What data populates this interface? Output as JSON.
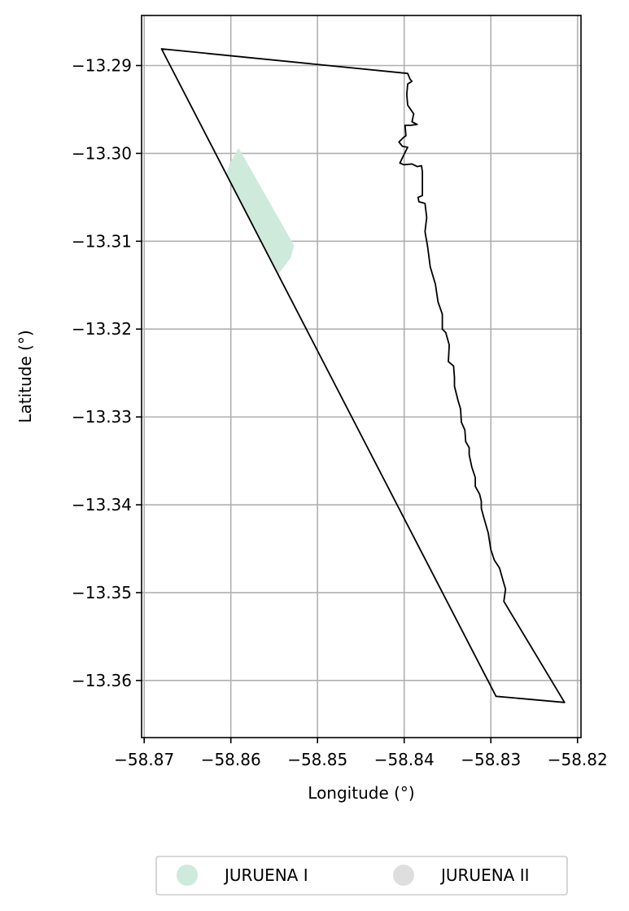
{
  "chart_data": {
    "type": "map",
    "xlabel": "Longitude (°)",
    "ylabel": "Latitude (°)",
    "xlim": [
      -58.8703,
      -58.8196
    ],
    "ylim": [
      -13.3665,
      -13.2843
    ],
    "xticks": [
      -58.87,
      -58.86,
      -58.85,
      -58.84,
      -58.83,
      -58.82
    ],
    "xtick_labels": [
      "−58.87",
      "−58.86",
      "−58.85",
      "−58.84",
      "−58.83",
      "−58.82"
    ],
    "yticks": [
      -13.29,
      -13.3,
      -13.31,
      -13.32,
      -13.33,
      -13.34,
      -13.35,
      -13.36
    ],
    "ytick_labels": [
      "−13.29",
      "−13.30",
      "−13.31",
      "−13.32",
      "−13.33",
      "−13.34",
      "−13.35",
      "−13.36"
    ],
    "grid": true,
    "legend_position": "bottom-center",
    "legend": [
      {
        "name": "JURUENA I",
        "color": "#cdeadb"
      },
      {
        "name": "JURUENA II",
        "color": "#dedede"
      }
    ],
    "areas": [
      {
        "legend_ref": 0,
        "color": "#cdeadb",
        "polygon": [
          [
            -58.8591,
            -13.2994
          ],
          [
            -58.8527,
            -13.3105
          ],
          [
            -58.8531,
            -13.3119
          ],
          [
            -58.8545,
            -13.3137
          ],
          [
            -58.8558,
            -13.3112
          ],
          [
            -58.8588,
            -13.3057
          ],
          [
            -58.8605,
            -13.3022
          ],
          [
            -58.8601,
            -13.3011
          ]
        ]
      }
    ],
    "boundary": {
      "color": "#000000",
      "polygon": [
        [
          -58.868,
          -13.2881
        ],
        [
          -58.8396,
          -13.2909
        ],
        [
          -58.8393,
          -13.2916
        ],
        [
          -58.8391,
          -13.2918
        ],
        [
          -58.8396,
          -13.2921
        ],
        [
          -58.8397,
          -13.2933
        ],
        [
          -58.8396,
          -13.2945
        ],
        [
          -58.8389,
          -13.2955
        ],
        [
          -58.8391,
          -13.2964
        ],
        [
          -58.8385,
          -13.2967
        ],
        [
          -58.8392,
          -13.2968
        ],
        [
          -58.8399,
          -13.2968
        ],
        [
          -58.8398,
          -13.298
        ],
        [
          -58.8401,
          -13.2982
        ],
        [
          -58.8406,
          -13.2987
        ],
        [
          -58.8402,
          -13.2992
        ],
        [
          -58.8396,
          -13.2993
        ],
        [
          -58.84,
          -13.3001
        ],
        [
          -58.8405,
          -13.3011
        ],
        [
          -58.84,
          -13.3013
        ],
        [
          -58.8391,
          -13.3012
        ],
        [
          -58.8385,
          -13.3015
        ],
        [
          -58.838,
          -13.3014
        ],
        [
          -58.8379,
          -13.3021
        ],
        [
          -58.8379,
          -13.3048
        ],
        [
          -58.8384,
          -13.305
        ],
        [
          -58.8383,
          -13.3055
        ],
        [
          -58.8376,
          -13.3057
        ],
        [
          -58.8374,
          -13.3073
        ],
        [
          -58.8376,
          -13.3089
        ],
        [
          -58.8373,
          -13.3106
        ],
        [
          -58.837,
          -13.3129
        ],
        [
          -58.8364,
          -13.3149
        ],
        [
          -58.8361,
          -13.3169
        ],
        [
          -58.8356,
          -13.3183
        ],
        [
          -58.8356,
          -13.32
        ],
        [
          -58.8352,
          -13.3204
        ],
        [
          -58.8348,
          -13.3218
        ],
        [
          -58.8349,
          -13.3237
        ],
        [
          -58.8343,
          -13.3242
        ],
        [
          -58.8342,
          -13.3255
        ],
        [
          -58.8342,
          -13.3265
        ],
        [
          -58.8338,
          -13.3281
        ],
        [
          -58.8335,
          -13.3291
        ],
        [
          -58.8334,
          -13.3306
        ],
        [
          -58.833,
          -13.3315
        ],
        [
          -58.8329,
          -13.3328
        ],
        [
          -58.8325,
          -13.3335
        ],
        [
          -58.8325,
          -13.3343
        ],
        [
          -58.8322,
          -13.3357
        ],
        [
          -58.8318,
          -13.3369
        ],
        [
          -58.8318,
          -13.3379
        ],
        [
          -58.8313,
          -13.3388
        ],
        [
          -58.8311,
          -13.3396
        ],
        [
          -58.8311,
          -13.3404
        ],
        [
          -58.8308,
          -13.3415
        ],
        [
          -58.8303,
          -13.3432
        ],
        [
          -58.83,
          -13.3451
        ],
        [
          -58.8296,
          -13.3463
        ],
        [
          -58.829,
          -13.3472
        ],
        [
          -58.8286,
          -13.3486
        ],
        [
          -58.8283,
          -13.3496
        ],
        [
          -58.8285,
          -13.351
        ],
        [
          -58.8215,
          -13.3625
        ],
        [
          -58.8294,
          -13.3618
        ]
      ]
    }
  }
}
